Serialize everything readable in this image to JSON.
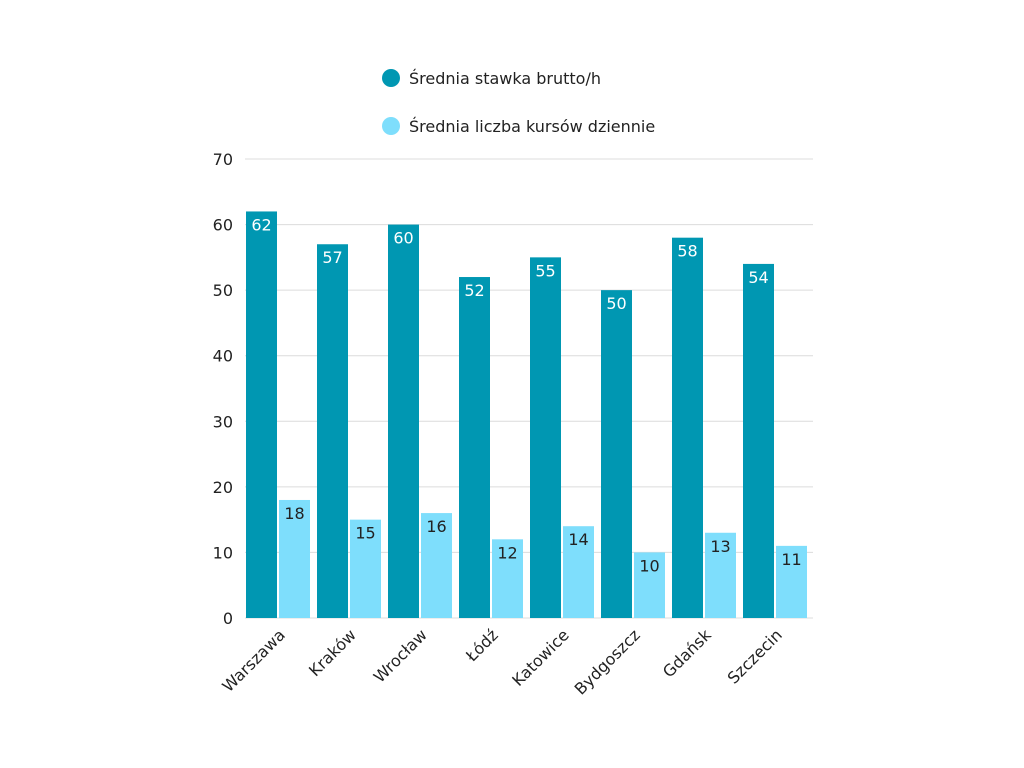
{
  "chart_data": {
    "type": "bar",
    "categories": [
      "Warszawa",
      "Kraków",
      "Wrocław",
      "Łódź",
      "Katowice",
      "Bydgoszcz",
      "Gdańsk",
      "Szczecin"
    ],
    "series": [
      {
        "name": "Średnia stawka brutto/h",
        "values": [
          62,
          57,
          60,
          52,
          55,
          50,
          58,
          54
        ],
        "color": "#0097B2"
      },
      {
        "name": "Średnia liczba kursów dziennie",
        "values": [
          18,
          15,
          16,
          12,
          14,
          10,
          13,
          11
        ],
        "color": "#7EDEFC"
      }
    ],
    "ylim": [
      0,
      70
    ],
    "yticks": [
      0,
      10,
      20,
      30,
      40,
      50,
      60,
      70
    ],
    "grid": true,
    "legend": "top",
    "data_labels": true
  }
}
